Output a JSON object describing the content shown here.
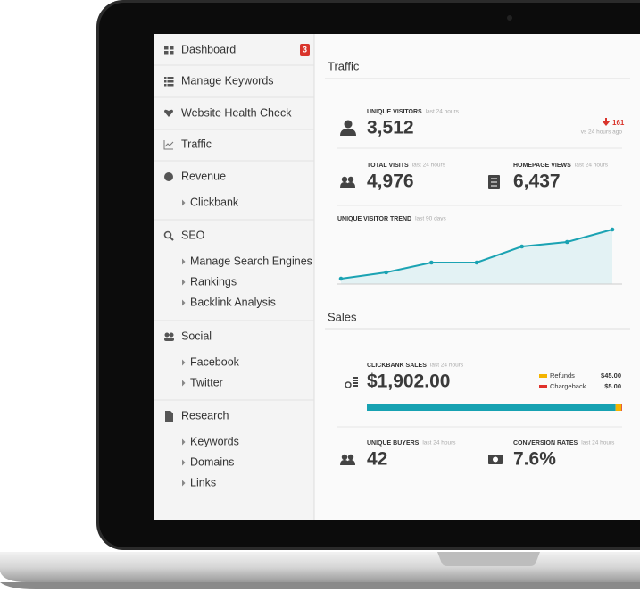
{
  "sidebar": {
    "groups": [
      {
        "label": "Dashboard",
        "badge": 3,
        "children": []
      },
      {
        "label": "Manage Keywords",
        "children": []
      },
      {
        "label": "Website Health Check",
        "children": []
      },
      {
        "label": "Traffic",
        "children": []
      },
      {
        "label": "Revenue",
        "children": [
          "Clickbank"
        ]
      },
      {
        "label": "SEO",
        "children": [
          "Manage Search Engines",
          "Rankings",
          "Backlink Analysis"
        ]
      },
      {
        "label": "Social",
        "children": [
          "Facebook",
          "Twitter"
        ]
      },
      {
        "label": "Research",
        "children": [
          "Keywords",
          "Domains",
          "Links"
        ]
      }
    ]
  },
  "traffic": {
    "title": "Traffic",
    "unique_visitors": {
      "label": "UNIQUE VISITORS",
      "period": "last 24 hours",
      "value": "3,512",
      "change": "161",
      "change_note": "vs 24 hours ago"
    },
    "total_visits": {
      "label": "TOTAL VISITS",
      "period": "last 24 hours",
      "value": "4,976"
    },
    "homepage_views": {
      "label": "HOMEPAGE VIEWS",
      "period": "last 24 hours",
      "value": "6,437"
    },
    "trend": {
      "label": "UNIQUE VISITOR TREND",
      "period": "last 90 days",
      "values": [
        6,
        13,
        24,
        24,
        42,
        47,
        61
      ],
      "color": "#1ba3b3"
    }
  },
  "sales": {
    "title": "Sales",
    "clickbank": {
      "label": "CLICKBANK SALES",
      "period": "last 24 hours",
      "value": 1902,
      "value_label": "$1,902.00",
      "color": "#17a2b2"
    },
    "breakdown": [
      {
        "name": "Refunds",
        "value": 45,
        "value_label": "$45.00",
        "color": "#f4b400"
      },
      {
        "name": "Chargeback",
        "value": 5,
        "value_label": "$5.00",
        "color": "#e0312b"
      }
    ],
    "unique_buyers": {
      "label": "UNIQUE BUYERS",
      "period": "last 24 hours",
      "value": "42"
    },
    "conversion_rates": {
      "label": "CONVERSION RATES",
      "period": "last 24 hours",
      "value": "7.6%"
    }
  }
}
